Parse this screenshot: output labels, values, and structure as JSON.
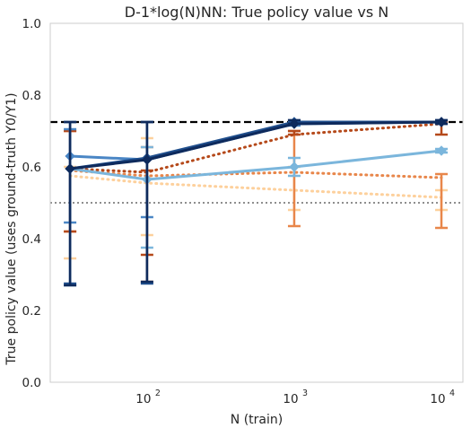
{
  "chart_data": {
    "type": "line",
    "title": "D-1*log(N)NN: True policy value vs N",
    "xlabel": "N (train)",
    "ylabel": "True policy value (uses ground-truth Y0/Y1)",
    "xscale": "log",
    "xlim": [
      22,
      14000
    ],
    "ylim": [
      0.0,
      1.0
    ],
    "x": [
      30,
      100,
      1000,
      10000
    ],
    "x_ticks": [
      {
        "value": 100,
        "base": "10",
        "exp": "2"
      },
      {
        "value": 1000,
        "base": "10",
        "exp": "3"
      },
      {
        "value": 10000,
        "base": "10",
        "exp": "4"
      }
    ],
    "y_ticks": [
      {
        "value": 0.0,
        "label": "0.0"
      },
      {
        "value": 0.2,
        "label": "0.2"
      },
      {
        "value": 0.4,
        "label": "0.4"
      },
      {
        "value": 0.6,
        "label": "0.6"
      },
      {
        "value": 0.8,
        "label": "0.8"
      },
      {
        "value": 1.0,
        "label": "1.0"
      }
    ],
    "grid": false,
    "legend": "none",
    "reference_lines": [
      {
        "y": 0.725,
        "style": "dashed",
        "color": "#000000"
      },
      {
        "y": 0.5,
        "style": "dotted",
        "color": "#7f7f7f"
      }
    ],
    "series": [
      {
        "color": "#fdd09c",
        "style": "dotted",
        "marker": "none",
        "values": [
          0.575,
          0.555,
          0.535,
          0.515
        ],
        "err_low": [
          0.345,
          0.41,
          0.48,
          0.48
        ],
        "err_high": [
          0.6,
          0.68,
          0.6,
          0.535
        ]
      },
      {
        "color": "#e8864a",
        "style": "dotted",
        "marker": "none",
        "values": [
          0.59,
          0.575,
          0.585,
          0.57
        ],
        "err_low": [
          0.42,
          0.28,
          0.435,
          0.43
        ],
        "err_high": [
          0.7,
          0.655,
          0.7,
          0.58
        ]
      },
      {
        "color": "#b5491a",
        "style": "dotted",
        "marker": "none",
        "values": [
          0.595,
          0.585,
          0.69,
          0.72
        ],
        "err_low": [
          0.42,
          0.355,
          0.69,
          0.69
        ],
        "err_high": [
          0.7,
          0.59,
          0.7,
          0.725
        ]
      },
      {
        "color": "#7bb6dc",
        "style": "solid",
        "marker": "diamond",
        "values": [
          0.595,
          0.565,
          0.6,
          0.645
        ],
        "err_low": [
          0.27,
          0.375,
          0.575,
          0.64
        ],
        "err_high": [
          0.725,
          0.655,
          0.625,
          0.65
        ]
      },
      {
        "color": "#4a86c5",
        "style": "solid",
        "marker": "diamond",
        "values": [
          0.63,
          0.62,
          0.72,
          0.725
        ],
        "err_low": [
          0.445,
          0.46,
          0.715,
          0.72
        ],
        "err_high": [
          0.705,
          0.725,
          0.725,
          0.73
        ]
      },
      {
        "color": "#1f4e8c",
        "style": "solid",
        "marker": "diamond",
        "values": [
          0.595,
          0.625,
          0.725,
          0.725
        ],
        "err_low": [
          0.275,
          0.275,
          0.72,
          0.72
        ],
        "err_high": [
          0.725,
          0.725,
          0.73,
          0.73
        ]
      },
      {
        "color": "#0e2a5c",
        "style": "solid",
        "marker": "diamond",
        "values": [
          0.595,
          0.62,
          0.72,
          0.725
        ],
        "err_low": [
          0.27,
          0.28,
          0.72,
          0.72
        ],
        "err_high": [
          0.725,
          0.725,
          0.73,
          0.73
        ]
      }
    ]
  }
}
